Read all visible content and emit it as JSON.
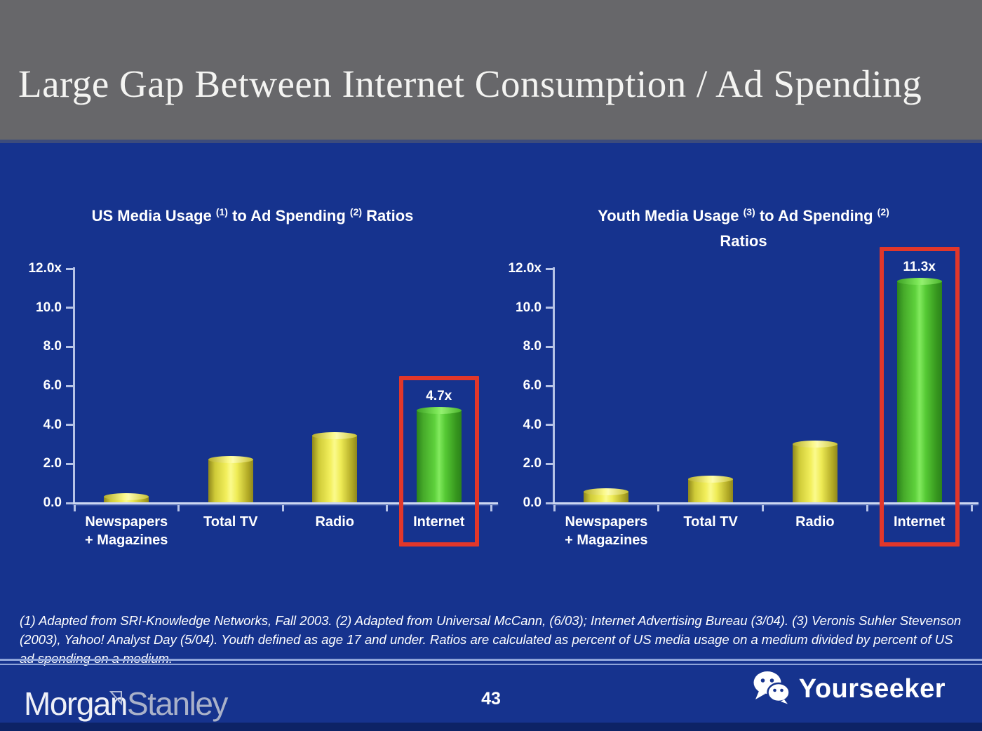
{
  "slide": {
    "title": "Large Gap Between Internet Consumption / Ad Spending",
    "footnote": "(1) Adapted from SRI-Knowledge Networks, Fall 2003.  (2) Adapted from Universal McCann, (6/03); Internet Advertising Bureau (3/04). (3) Veronis Suhler Stevenson (2003), Yahoo! Analyst Day (5/04).  Youth defined as age 17 and under.  Ratios are calculated as percent of US media usage on a medium divided by percent of US ad spending on a medium.",
    "page_number": "43",
    "brand": {
      "word1": "Morgan",
      "word2": "Stanley"
    },
    "watermark_label": "Yourseeker",
    "watermark_icon": "wechat-icon"
  },
  "colors": {
    "header_gray": "#67676a",
    "body_blue": "#16338e",
    "bar_yellow": "#f2ef5c",
    "bar_green": "#5ed13c",
    "highlight_red": "#e2372a",
    "axis_light_blue": "#b6c3e6",
    "text_white": "#ffffff"
  },
  "chart_data": [
    {
      "type": "bar",
      "title": "US Media Usage (1) to Ad Spending (2) Ratios",
      "title_parts": [
        {
          "text": "US Media Usage "
        },
        {
          "sup": "(1)"
        },
        {
          "text": " to Ad Spending "
        },
        {
          "sup": "(2)"
        },
        {
          "text": " Ratios"
        }
      ],
      "categories": [
        "Newspapers\n+ Magazines",
        "Total TV",
        "Radio",
        "Internet"
      ],
      "values": [
        0.3,
        2.2,
        3.4,
        4.7
      ],
      "bar_styles": [
        "yellow",
        "yellow",
        "yellow",
        "green"
      ],
      "ylim": [
        0,
        12
      ],
      "grid": false,
      "legend": false,
      "y_ticks": [
        {
          "value": 12,
          "label": "12.0x"
        },
        {
          "value": 10,
          "label": "10.0"
        },
        {
          "value": 8,
          "label": "8.0"
        },
        {
          "value": 6,
          "label": "6.0"
        },
        {
          "value": 4,
          "label": "4.0"
        },
        {
          "value": 2,
          "label": "2.0"
        },
        {
          "value": 0,
          "label": "0.0"
        }
      ],
      "data_labels": [
        {
          "index": 3,
          "text": "4.7x"
        }
      ],
      "highlight": {
        "index": 3,
        "top_value": 6.5
      }
    },
    {
      "type": "bar",
      "title": "Youth Media Usage (3) to Ad Spending (2) Ratios",
      "title_parts": [
        {
          "text": "Youth Media Usage "
        },
        {
          "sup": "(3)"
        },
        {
          "text": " to Ad Spending "
        },
        {
          "sup": "(2)"
        },
        {
          "br": true
        },
        {
          "text": "Ratios"
        }
      ],
      "categories": [
        "Newspapers\n+ Magazines",
        "Total TV",
        "Radio",
        "Internet"
      ],
      "values": [
        0.55,
        1.2,
        3.0,
        11.3
      ],
      "bar_styles": [
        "yellow",
        "yellow",
        "yellow",
        "green"
      ],
      "ylim": [
        0,
        12
      ],
      "grid": false,
      "legend": false,
      "y_ticks": [
        {
          "value": 12,
          "label": "12.0x"
        },
        {
          "value": 10,
          "label": "10.0"
        },
        {
          "value": 8,
          "label": "8.0"
        },
        {
          "value": 6,
          "label": "6.0"
        },
        {
          "value": 4,
          "label": "4.0"
        },
        {
          "value": 2,
          "label": "2.0"
        },
        {
          "value": 0,
          "label": "0.0"
        }
      ],
      "data_labels": [
        {
          "index": 3,
          "text": "11.3x"
        }
      ],
      "highlight": {
        "index": 3,
        "top_value": 13.1
      }
    }
  ]
}
